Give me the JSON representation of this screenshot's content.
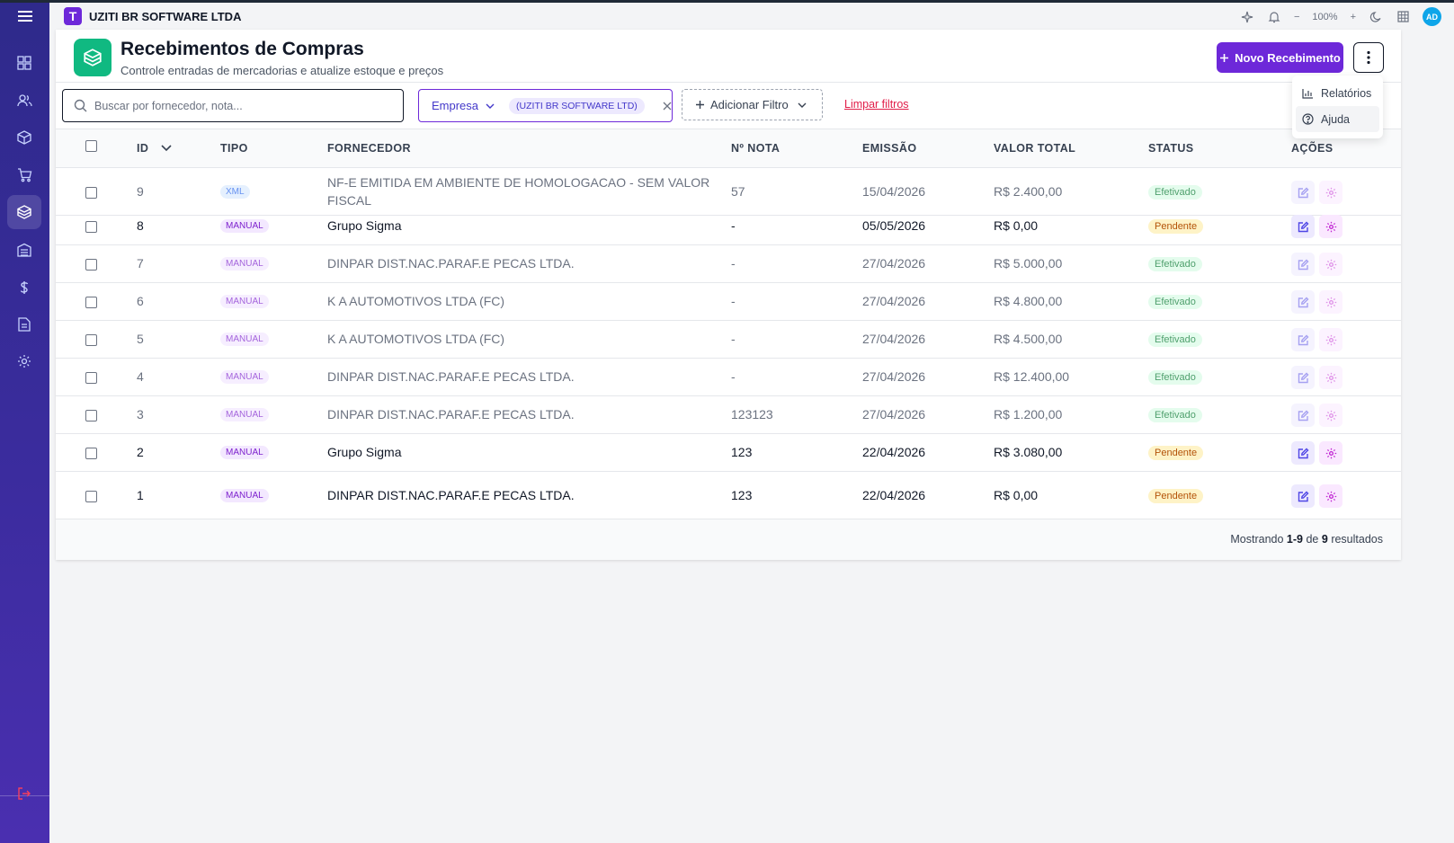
{
  "app": {
    "company": "UZITI BR SOFTWARE LTDA",
    "logo_letter": "T"
  },
  "topbar": {
    "zoom": "100%",
    "avatar": "AD",
    "zoom_minus": "−",
    "zoom_plus": "+"
  },
  "page": {
    "title": "Recebimentos de Compras",
    "subtitle": "Controle entradas de mercadorias e atualize estoque e preços",
    "new_button": "Novo Recebimento"
  },
  "menu": {
    "items": [
      "Relatórios",
      "Ajuda"
    ]
  },
  "filters": {
    "search_placeholder": "Buscar por fornecedor, nota...",
    "empresa_label": "Empresa",
    "empresa_value": "(UZITI BR SOFTWARE LTD)",
    "add_filter": "Adicionar Filtro",
    "clear": "Limpar filtros"
  },
  "table": {
    "columns": [
      "ID",
      "TIPO",
      "FORNECEDOR",
      "Nº NOTA",
      "EMISSÃO",
      "VALOR TOTAL",
      "STATUS",
      "AÇÕES"
    ],
    "rows": [
      {
        "id": "9",
        "tipo": "XML",
        "fornecedor": "NF-E EMITIDA EM AMBIENTE DE HOMOLOGACAO - SEM VALOR",
        "fornecedor2": "FISCAL",
        "nota": "57",
        "emissao": "15/04/2026",
        "valor": "R$ 2.400,00",
        "status": "Efetivado"
      },
      {
        "id": "8",
        "tipo": "MANUAL",
        "fornecedor": "Grupo Sigma",
        "nota": "-",
        "emissao": "05/05/2026",
        "valor": "R$ 0,00",
        "status": "Pendente"
      },
      {
        "id": "7",
        "tipo": "MANUAL",
        "fornecedor": "DINPAR DIST.NAC.PARAF.E PECAS LTDA.",
        "nota": "-",
        "emissao": "27/04/2026",
        "valor": "R$ 5.000,00",
        "status": "Efetivado"
      },
      {
        "id": "6",
        "tipo": "MANUAL",
        "fornecedor": "K A AUTOMOTIVOS LTDA (FC)",
        "nota": "-",
        "emissao": "27/04/2026",
        "valor": "R$ 4.800,00",
        "status": "Efetivado"
      },
      {
        "id": "5",
        "tipo": "MANUAL",
        "fornecedor": "K A AUTOMOTIVOS LTDA (FC)",
        "nota": "-",
        "emissao": "27/04/2026",
        "valor": "R$ 4.500,00",
        "status": "Efetivado"
      },
      {
        "id": "4",
        "tipo": "MANUAL",
        "fornecedor": "DINPAR DIST.NAC.PARAF.E PECAS LTDA.",
        "nota": "-",
        "emissao": "27/04/2026",
        "valor": "R$ 12.400,00",
        "status": "Efetivado"
      },
      {
        "id": "3",
        "tipo": "MANUAL",
        "fornecedor": "DINPAR DIST.NAC.PARAF.E PECAS LTDA.",
        "nota": "123123",
        "emissao": "27/04/2026",
        "valor": "R$ 1.200,00",
        "status": "Efetivado"
      },
      {
        "id": "2",
        "tipo": "MANUAL",
        "fornecedor": "Grupo Sigma",
        "nota": "123",
        "emissao": "22/04/2026",
        "valor": "R$ 3.080,00",
        "status": "Pendente"
      },
      {
        "id": "1",
        "tipo": "MANUAL",
        "fornecedor": "DINPAR DIST.NAC.PARAF.E PECAS LTDA.",
        "nota": "123",
        "emissao": "22/04/2026",
        "valor": "R$ 0,00",
        "status": "Pendente"
      }
    ]
  },
  "footer": {
    "prefix": "Mostrando",
    "range": "1-9",
    "of": "de",
    "total": "9",
    "suffix": "resultados"
  },
  "colors": {
    "accent": "#6d28d9",
    "sidebar": "#2f2a8c",
    "header_icon": "#10b981",
    "clear_link": "#e11d48"
  },
  "icons": {
    "sidebar": [
      "dashboard-icon",
      "users-icon",
      "box-icon",
      "cart-icon",
      "receiving-icon",
      "warehouse-icon",
      "dollar-icon",
      "document-icon",
      "settings-icon",
      "logout-icon"
    ],
    "topbar": [
      "sparkle-icon",
      "bell-icon",
      "moon-icon",
      "grid-icon"
    ]
  }
}
